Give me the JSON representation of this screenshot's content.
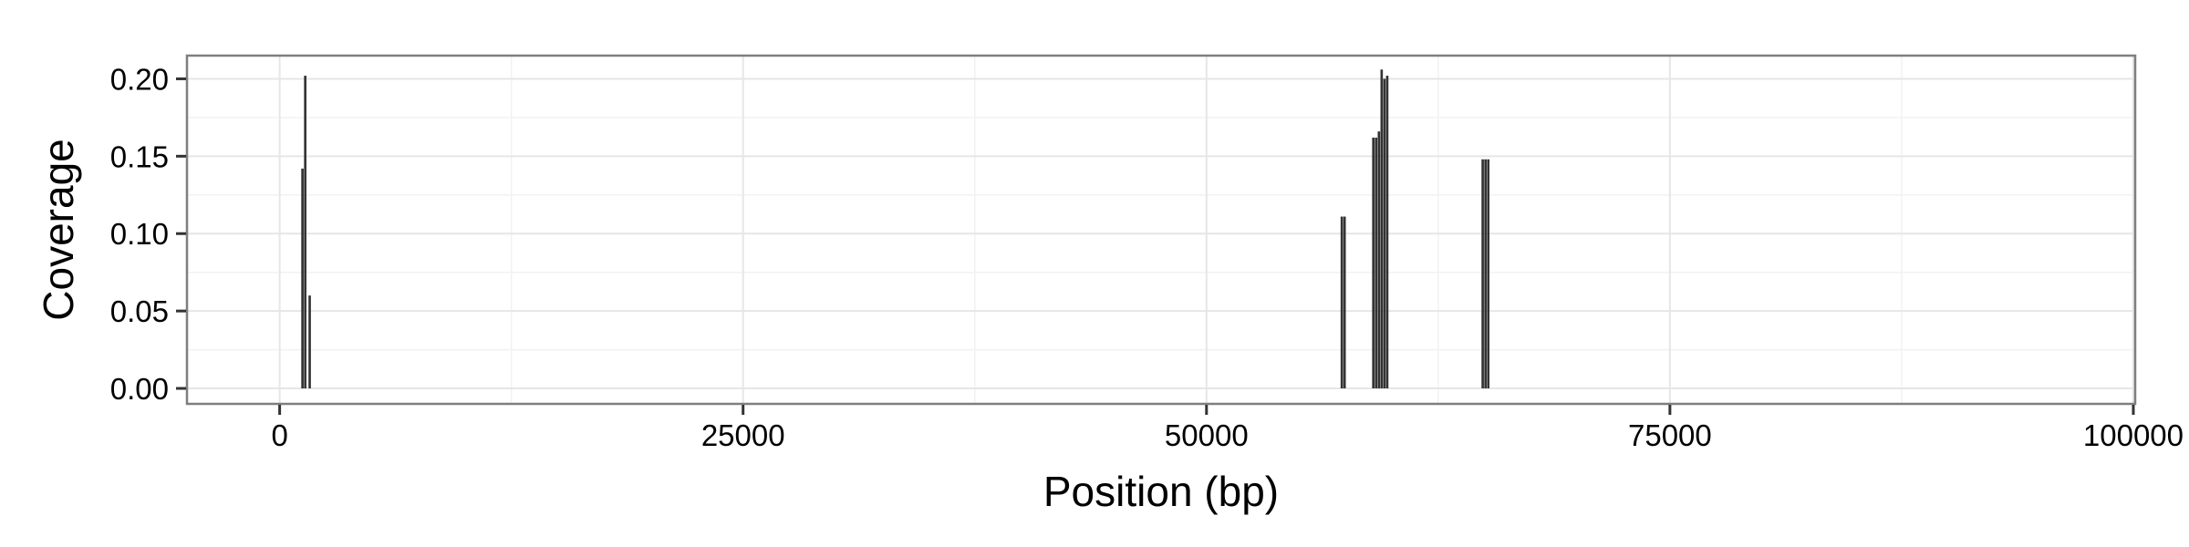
{
  "chart_data": {
    "type": "bar",
    "xlabel": "Position (bp)",
    "ylabel": "Coverage",
    "xlim": [
      -5000,
      100100
    ],
    "ylim": [
      -0.01,
      0.215
    ],
    "x_ticks": [
      0,
      25000,
      50000,
      75000,
      100000
    ],
    "y_ticks": [
      0.0,
      0.05,
      0.1,
      0.15,
      0.2
    ],
    "y_tick_labels": [
      "0.00",
      "0.05",
      "0.10",
      "0.15",
      "0.20"
    ],
    "x_tick_labels": [
      "0",
      "25000",
      "50000",
      "75000",
      "100000"
    ],
    "grid": true,
    "bar_width_bp": 130,
    "bar_color": "#333333",
    "bars": [
      {
        "x": 1230,
        "y": 0.142
      },
      {
        "x": 1380,
        "y": 0.202
      },
      {
        "x": 1620,
        "y": 0.06
      },
      {
        "x": 57300,
        "y": 0.111
      },
      {
        "x": 57450,
        "y": 0.111
      },
      {
        "x": 59000,
        "y": 0.162
      },
      {
        "x": 59150,
        "y": 0.162
      },
      {
        "x": 59300,
        "y": 0.166
      },
      {
        "x": 59450,
        "y": 0.206
      },
      {
        "x": 59600,
        "y": 0.2
      },
      {
        "x": 59750,
        "y": 0.202
      },
      {
        "x": 64900,
        "y": 0.148
      },
      {
        "x": 65050,
        "y": 0.148
      },
      {
        "x": 65200,
        "y": 0.148
      }
    ]
  }
}
